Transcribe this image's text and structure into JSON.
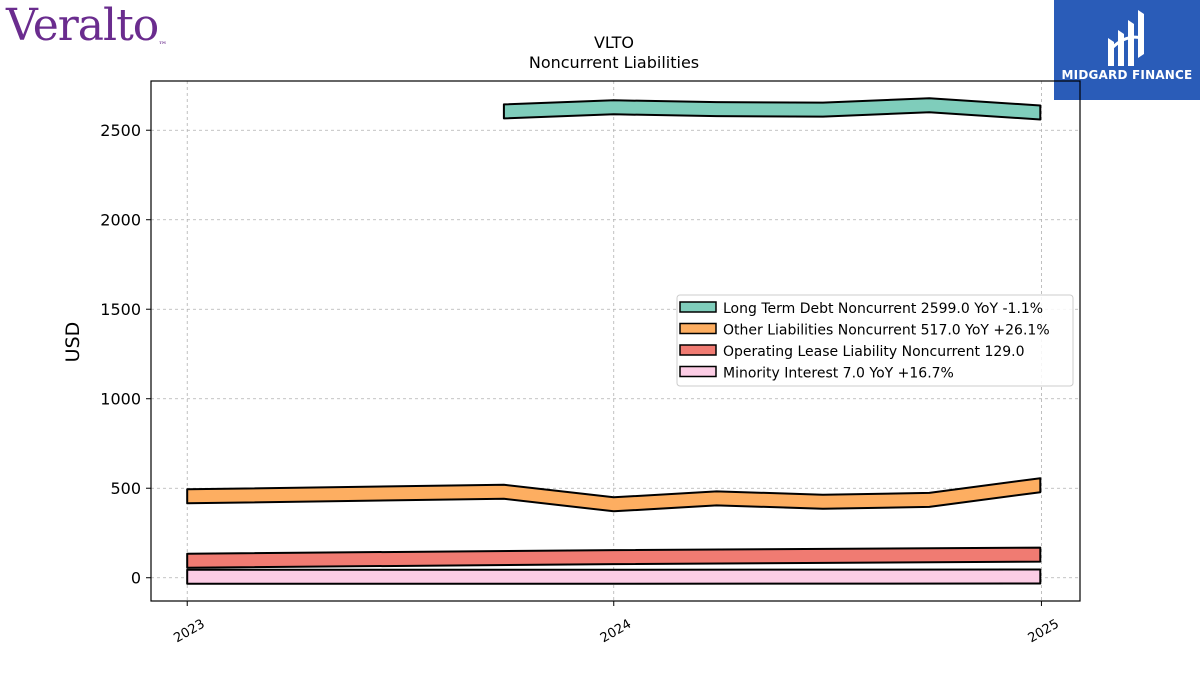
{
  "brand": {
    "logo_text": "Veralto"
  },
  "partner": {
    "name": "MIDGARD FINANCE"
  },
  "chart_data": {
    "type": "area",
    "title": "VLTO",
    "subtitle": "Noncurrent  Liabilities",
    "ylabel": "USD",
    "xlabel": "",
    "ylim": [
      -130,
      2775
    ],
    "yticks": [
      0,
      500,
      1000,
      1500,
      2000,
      2500
    ],
    "xticks": [
      "2023",
      "2024",
      "2025"
    ],
    "grid": true,
    "legend_position": "center-right",
    "series": [
      {
        "name": "Long Term Debt Noncurrent",
        "legend": "Long Term Debt Noncurrent  2599.0 YoY -1.1%",
        "color": "#7fcdbb",
        "x": [
          "2023-09-29",
          "2024-01-01",
          "2024-03-29",
          "2024-06-28",
          "2024-09-27",
          "2024-12-31"
        ],
        "values": [
          2605,
          2628,
          2618,
          2615,
          2640,
          2599
        ]
      },
      {
        "name": "Other Liabilities Noncurrent",
        "legend": "Other Liabilities Noncurrent  517.0 YoY +26.1%",
        "color": "#fdae61",
        "x": [
          "2023-01-01",
          "2023-09-29",
          "2024-01-01",
          "2024-03-29",
          "2024-06-28",
          "2024-09-27",
          "2024-12-31"
        ],
        "values": [
          455,
          480,
          410,
          443,
          425,
          435,
          517
        ]
      },
      {
        "name": "Operating Lease Liability Noncurrent",
        "legend": "Operating Lease Liability Noncurrent  129.0",
        "color": "#f07b72",
        "x": [
          "2023-01-01",
          "2024-01-01",
          "2024-12-31"
        ],
        "values": [
          95,
          115,
          129
        ]
      },
      {
        "name": "Minority Interest",
        "legend": "Minority Interest  7.0 YoY +16.7%",
        "color": "#fccde5",
        "x": [
          "2023-01-01",
          "2024-01-01",
          "2024-12-31"
        ],
        "values": [
          6,
          6,
          7
        ]
      }
    ]
  }
}
